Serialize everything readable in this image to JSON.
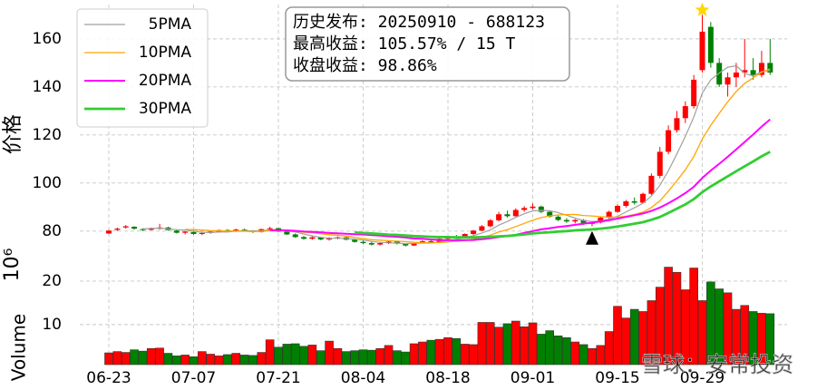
{
  "chart_data": {
    "type": "candlestick",
    "categories": [
      "06-23",
      null,
      null,
      null,
      null,
      null,
      null,
      null,
      null,
      null,
      "07-07",
      null,
      null,
      null,
      null,
      null,
      null,
      null,
      null,
      null,
      "07-21",
      null,
      null,
      null,
      null,
      null,
      null,
      null,
      null,
      null,
      "08-04",
      null,
      null,
      null,
      null,
      null,
      null,
      null,
      null,
      null,
      "08-18",
      null,
      null,
      null,
      null,
      null,
      null,
      null,
      null,
      null,
      "09-01",
      null,
      null,
      null,
      null,
      null,
      null,
      null,
      null,
      null,
      "09-15",
      null,
      null,
      null,
      null,
      null,
      null,
      null,
      null,
      null,
      "09-29",
      null,
      null,
      null,
      null,
      null,
      null,
      null,
      null
    ],
    "ohlc": {
      "open": [
        79,
        80.5,
        81.5,
        81.8,
        80.8,
        80.5,
        81,
        81.5,
        80.2,
        79.3,
        79.6,
        78.8,
        79.2,
        79.6,
        80.4,
        80,
        80.6,
        80,
        79.6,
        80.8,
        81.2,
        79.8,
        78.6,
        77.5,
        76.8,
        77.4,
        76.5,
        77,
        77.4,
        76.4,
        75.5,
        75,
        74.4,
        75,
        75.6,
        74.8,
        74,
        75,
        75.8,
        75.4,
        76.8,
        77.6,
        77.2,
        78.8,
        80.2,
        82,
        84.5,
        87,
        86.2,
        88.8,
        89.6,
        90.2,
        88,
        86,
        84.6,
        84,
        84.6,
        83,
        83.6,
        85.6,
        88,
        90.5,
        92.4,
        91.8,
        95.5,
        103,
        113,
        122,
        127,
        132,
        147,
        165,
        150,
        141,
        144,
        146,
        147,
        145,
        150
      ],
      "high": [
        80.5,
        81.5,
        82.5,
        82,
        81.2,
        81.5,
        83,
        81.8,
        80.6,
        80,
        80,
        79.6,
        80.2,
        80.6,
        80.8,
        81,
        81,
        80.4,
        81,
        81.8,
        81.4,
        80,
        79,
        78,
        77.8,
        77.6,
        77.5,
        77.8,
        77.6,
        76.8,
        76,
        75.6,
        75.4,
        76,
        76,
        75,
        75.2,
        76.2,
        76.4,
        77,
        78,
        78.4,
        79,
        80.5,
        82.5,
        85,
        88,
        88.5,
        89.5,
        90.4,
        91.5,
        90.6,
        88.4,
        86.5,
        85.4,
        85,
        85,
        84,
        86,
        88.5,
        91,
        93,
        94,
        96,
        104,
        115,
        124,
        130,
        134,
        145,
        170,
        167,
        152,
        146,
        150,
        160,
        152,
        155,
        160
      ],
      "low": [
        78.8,
        80,
        81,
        80.6,
        80,
        80.3,
        80.5,
        80.2,
        79,
        78.6,
        78.5,
        78.3,
        78.9,
        79.4,
        79.6,
        79.6,
        79.8,
        79.2,
        79.4,
        80.2,
        79.6,
        78.4,
        77.2,
        76.4,
        76.4,
        76.2,
        76,
        76.6,
        76.2,
        75.2,
        74.5,
        74,
        74,
        74.6,
        74.4,
        73.6,
        73.8,
        74.8,
        75,
        75.2,
        76.4,
        76.8,
        77,
        78.4,
        80,
        81.6,
        84,
        85.6,
        86,
        88,
        89,
        87.5,
        85.6,
        84.2,
        83.4,
        83.2,
        82.6,
        82,
        83.2,
        85.2,
        87.6,
        89.8,
        91,
        91.5,
        95,
        102,
        112,
        121,
        125,
        131,
        146,
        148,
        140,
        136,
        140,
        144,
        143,
        144,
        145
      ],
      "close": [
        80.2,
        81,
        82,
        81,
        80.5,
        81.2,
        81.5,
        80.4,
        79.3,
        79.8,
        78.8,
        79.2,
        79.8,
        80.4,
        80,
        80.6,
        80.1,
        79.6,
        80.8,
        81.2,
        79.8,
        78.6,
        77.5,
        76.8,
        77.4,
        76.5,
        77,
        77.4,
        76.4,
        75.5,
        75,
        74.4,
        75,
        75.6,
        74.8,
        74,
        75,
        75.8,
        75.4,
        76.8,
        77.6,
        77.2,
        78.8,
        80.2,
        82,
        84.5,
        87,
        86.2,
        88.8,
        89.6,
        90.2,
        88,
        86,
        84.6,
        84,
        84.6,
        83,
        83.6,
        85.6,
        88,
        90.5,
        92.4,
        91.8,
        95.5,
        103,
        113,
        122,
        127,
        132,
        143,
        163,
        150,
        141,
        144,
        146,
        147,
        145,
        150,
        146
      ]
    },
    "up_color": "#ff0000",
    "down_color": "#008000",
    "series": [
      {
        "name": "5PMA",
        "color": "#a0a0a0",
        "width": 1.2,
        "values": [
          null,
          null,
          null,
          null,
          80.9,
          81.1,
          81.2,
          80.9,
          80.6,
          80.4,
          80.0,
          79.5,
          79.4,
          79.6,
          79.6,
          80.0,
          80.2,
          80.1,
          80.2,
          80.5,
          80.3,
          80.0,
          79.6,
          78.8,
          78.0,
          77.4,
          77.0,
          77.0,
          76.9,
          76.6,
          76.3,
          75.7,
          75.3,
          75.1,
          75.0,
          74.8,
          74.9,
          75.0,
          75.0,
          75.4,
          76.1,
          76.6,
          77.2,
          78.1,
          79.2,
          80.5,
          82.5,
          84.0,
          85.7,
          87.2,
          88.4,
          88.6,
          88.5,
          87.7,
          86.6,
          85.4,
          84.4,
          84.0,
          84.2,
          85.0,
          86.1,
          88.0,
          89.7,
          91.6,
          94.6,
          99.1,
          105.1,
          112.1,
          119.4,
          127.4,
          137.4,
          143.0,
          145.8,
          148.2,
          148.8,
          145.6,
          144.6,
          146.4,
          146.8
        ]
      },
      {
        "name": "10PMA",
        "color": "#ffa500",
        "width": 1.3,
        "values": [
          null,
          null,
          null,
          null,
          null,
          null,
          null,
          null,
          null,
          80.7,
          80.6,
          80.4,
          80.2,
          80.1,
          80.0,
          80.0,
          79.9,
          79.8,
          79.9,
          80.1,
          80.2,
          80.1,
          79.9,
          79.5,
          79.3,
          78.9,
          78.5,
          78.3,
          77.9,
          77.3,
          76.9,
          76.4,
          76.2,
          76.0,
          75.8,
          75.6,
          75.3,
          75.2,
          75.1,
          75.2,
          75.5,
          75.8,
          76.1,
          76.6,
          77.3,
          78.3,
          79.6,
          80.6,
          81.9,
          83.2,
          84.5,
          85.6,
          86.3,
          86.7,
          86.9,
          86.9,
          86.5,
          86.3,
          86.0,
          85.8,
          85.8,
          86.2,
          86.9,
          87.9,
          89.8,
          92.6,
          96.6,
          100.9,
          105.5,
          111.0,
          118.3,
          124.1,
          129.0,
          133.8,
          138.1,
          141.5,
          143.8,
          146.1,
          147.5
        ]
      },
      {
        "name": "20PMA",
        "color": "#ff00ff",
        "width": 2,
        "values": [
          null,
          null,
          null,
          null,
          null,
          null,
          null,
          null,
          null,
          null,
          null,
          null,
          null,
          null,
          null,
          null,
          null,
          null,
          null,
          80.4,
          80.4,
          80.3,
          80.1,
          79.8,
          79.7,
          79.5,
          79.2,
          79.1,
          78.9,
          78.7,
          78.6,
          78.3,
          78.1,
          77.8,
          77.6,
          77.3,
          76.9,
          76.8,
          76.5,
          76.3,
          76.2,
          76.1,
          76.2,
          76.3,
          76.6,
          77.0,
          77.5,
          77.9,
          78.5,
          79.2,
          80.0,
          80.7,
          81.2,
          81.7,
          82.1,
          82.6,
          83.1,
          83.5,
          84.0,
          84.5,
          85.2,
          85.9,
          86.6,
          87.3,
          88.4,
          89.8,
          91.6,
          93.6,
          95.8,
          98.4,
          102.1,
          105.2,
          108.0,
          110.9,
          114.0,
          117.1,
          120.2,
          123.5,
          126.5
        ]
      },
      {
        "name": "30PMA",
        "color": "#32cd32",
        "width": 2.8,
        "values": [
          null,
          null,
          null,
          null,
          null,
          null,
          null,
          null,
          null,
          null,
          null,
          null,
          null,
          null,
          null,
          null,
          null,
          null,
          null,
          null,
          null,
          null,
          null,
          null,
          null,
          null,
          null,
          null,
          null,
          79.4,
          79.2,
          79.0,
          78.8,
          78.5,
          78.4,
          78.2,
          77.9,
          77.8,
          77.6,
          77.5,
          77.5,
          77.4,
          77.4,
          77.4,
          77.5,
          77.6,
          77.8,
          78.0,
          78.3,
          78.6,
          79.0,
          79.3,
          79.5,
          79.8,
          80.0,
          80.3,
          80.5,
          80.7,
          81.0,
          81.4,
          81.9,
          82.5,
          83.1,
          83.7,
          84.7,
          85.9,
          87.6,
          89.3,
          91.1,
          93.3,
          96.2,
          98.6,
          100.7,
          102.8,
          104.9,
          107.0,
          109.0,
          111.1,
          113.0
        ]
      }
    ],
    "ylabel": "价格",
    "ylim": [
      73.5,
      174.3
    ],
    "yticks": [
      80,
      100,
      120,
      140,
      160
    ],
    "grid": true,
    "legend": "upper left",
    "markers": [
      {
        "shape": "triangle",
        "index": 57,
        "value": 77,
        "color": "#000000"
      },
      {
        "shape": "star",
        "index": 70,
        "value": 172,
        "color": "#ffd700"
      }
    ],
    "annotation": [
      "历史发布: 20250910 - 688123",
      "最高收益: 105.57% / 15 T",
      "收盘收益: 98.86%"
    ],
    "volume": {
      "ylabel": "Volume",
      "exponent_label": "10⁶",
      "ylim": [
        0.8,
        27.9
      ],
      "yticks": [
        10,
        20
      ],
      "values": [
        3.5,
        3.8,
        3.6,
        4.2,
        3.9,
        4.5,
        4.6,
        3.4,
        2.8,
        3.0,
        2.6,
        3.8,
        3.2,
        2.8,
        3.1,
        3.4,
        3.0,
        2.9,
        3.6,
        6.5,
        4.8,
        5.5,
        5.6,
        5.0,
        5.3,
        4.0,
        6.2,
        4.5,
        3.8,
        4.0,
        4.2,
        4.1,
        4.5,
        5.2,
        4.0,
        3.7,
        5.6,
        6.0,
        6.4,
        6.6,
        7.0,
        6.8,
        5.5,
        5.4,
        10.5,
        10.5,
        9.4,
        10.2,
        10.8,
        9.5,
        10.4,
        7.8,
        8.6,
        7.4,
        7.0,
        6.0,
        5.4,
        4.5,
        5.2,
        8.4,
        14.2,
        11.5,
        13.5,
        13.0,
        15.5,
        18.6,
        23.2,
        22.0,
        18.0,
        23.0,
        15.5,
        19.8,
        18.2,
        17.3,
        13.5,
        14.4,
        13.0,
        12.6,
        12.5
      ]
    },
    "watermark": "雪球：安常投资"
  }
}
